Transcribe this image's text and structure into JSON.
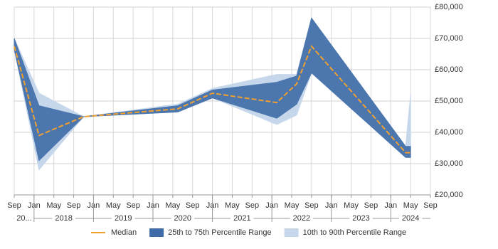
{
  "chart_data": {
    "type": "range-line",
    "x": [
      "2017-09",
      "2018-02",
      "2018-11",
      "2020-06",
      "2021-01",
      "2022-02",
      "2022-06",
      "2022-09",
      "2024-04",
      "2024-05"
    ],
    "xlim": [
      "2017-09",
      "2024-09"
    ],
    "xticks": [
      {
        "value": "2017-09",
        "label": "Sep"
      },
      {
        "value": "2018-01",
        "label": "Jan"
      },
      {
        "value": "2018-05",
        "label": "May"
      },
      {
        "value": "2018-09",
        "label": "Sep"
      },
      {
        "value": "2019-01",
        "label": "Jan"
      },
      {
        "value": "2019-05",
        "label": "May"
      },
      {
        "value": "2019-09",
        "label": "Sep"
      },
      {
        "value": "2020-01",
        "label": "Jan"
      },
      {
        "value": "2020-05",
        "label": "May"
      },
      {
        "value": "2020-09",
        "label": "Sep"
      },
      {
        "value": "2021-01",
        "label": "Jan"
      },
      {
        "value": "2021-05",
        "label": "May"
      },
      {
        "value": "2021-09",
        "label": "Sep"
      },
      {
        "value": "2022-01",
        "label": "Jan"
      },
      {
        "value": "2022-05",
        "label": "May"
      },
      {
        "value": "2022-09",
        "label": "Sep"
      },
      {
        "value": "2023-01",
        "label": "Jan"
      },
      {
        "value": "2023-05",
        "label": "May"
      },
      {
        "value": "2023-09",
        "label": "Sep"
      },
      {
        "value": "2024-01",
        "label": "Jan"
      },
      {
        "value": "2024-05",
        "label": "May"
      },
      {
        "value": "2024-09",
        "label": "Sep"
      }
    ],
    "year_labels": [
      {
        "value": "2017-01",
        "label": "20..."
      },
      {
        "value": "2018-01",
        "label": "2018"
      },
      {
        "value": "2019-01",
        "label": "2019"
      },
      {
        "value": "2020-01",
        "label": "2020"
      },
      {
        "value": "2021-01",
        "label": "2021"
      },
      {
        "value": "2022-01",
        "label": "2022"
      },
      {
        "value": "2023-01",
        "label": "2023"
      },
      {
        "value": "2024-01",
        "label": "2024"
      }
    ],
    "ylim": [
      20000,
      80000
    ],
    "yticks": [
      {
        "value": 20000,
        "label": "£20,000"
      },
      {
        "value": 30000,
        "label": "£30,000"
      },
      {
        "value": 40000,
        "label": "£40,000"
      },
      {
        "value": 50000,
        "label": "£50,000"
      },
      {
        "value": 60000,
        "label": "£60,000"
      },
      {
        "value": 70000,
        "label": "£70,000"
      },
      {
        "value": 80000,
        "label": "£80,000"
      }
    ],
    "grid": true,
    "median": {
      "name": "Median",
      "color": "#f0a030",
      "values": [
        67500,
        39000,
        45000,
        47500,
        52500,
        49500,
        55500,
        67500,
        33500,
        33500
      ]
    },
    "bands": [
      {
        "name": "25th to 75th Percentile Range",
        "color": "#3f6ca8",
        "low": [
          66500,
          31000,
          45000,
          46500,
          51000,
          44500,
          49000,
          59000,
          32000,
          32000
        ],
        "high": [
          70000,
          48500,
          45000,
          48500,
          53500,
          56000,
          58000,
          76500,
          35500,
          35500
        ]
      },
      {
        "name": "10th to 90th Percentile Range",
        "color": "#c6d7ec",
        "low": [
          66500,
          28000,
          45000,
          46500,
          51000,
          42500,
          45500,
          59000,
          32000,
          32000
        ],
        "high": [
          70000,
          52500,
          45000,
          49000,
          54000,
          58500,
          58500,
          76500,
          35500,
          52000
        ]
      }
    ]
  }
}
